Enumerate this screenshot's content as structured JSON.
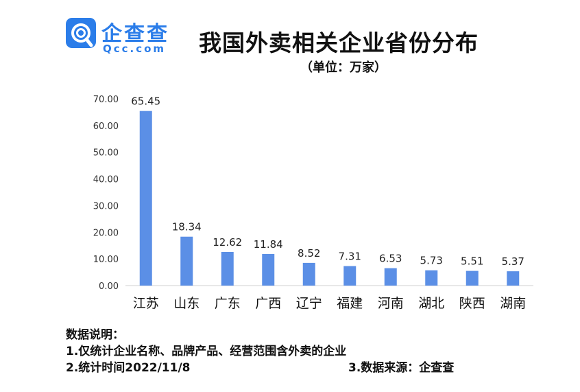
{
  "header": {
    "brand_cn": "企查查",
    "brand_en": "Qcc.com",
    "title": "我国外卖相关企业省份分布",
    "unit": "（单位：万家）"
  },
  "chart_data": {
    "type": "bar",
    "categories": [
      "江苏",
      "山东",
      "广东",
      "广西",
      "辽宁",
      "福建",
      "河南",
      "湖北",
      "陕西",
      "湖南"
    ],
    "values": [
      65.45,
      18.34,
      12.62,
      11.84,
      8.52,
      7.31,
      6.53,
      5.73,
      5.51,
      5.37
    ],
    "value_labels": [
      "65.45",
      "18.34",
      "12.62",
      "11.84",
      "8.52",
      "7.31",
      "6.53",
      "5.73",
      "5.51",
      "5.37"
    ],
    "yticks": [
      "0.00",
      "10.00",
      "20.00",
      "30.00",
      "40.00",
      "50.00",
      "60.00",
      "70.00"
    ],
    "ylim": [
      0,
      70
    ],
    "grid": false,
    "bar_color": "#5b8fe6"
  },
  "notes": {
    "heading": "数据说明：",
    "line1": "1.仅统计企业名称、品牌产品、经营范围含外卖的企业",
    "line2": "2.统计时间2022/11/8",
    "source": "3.数据来源：企查查"
  },
  "colors": {
    "brand": "#2b7de9",
    "axis": "#d0d0d0"
  }
}
